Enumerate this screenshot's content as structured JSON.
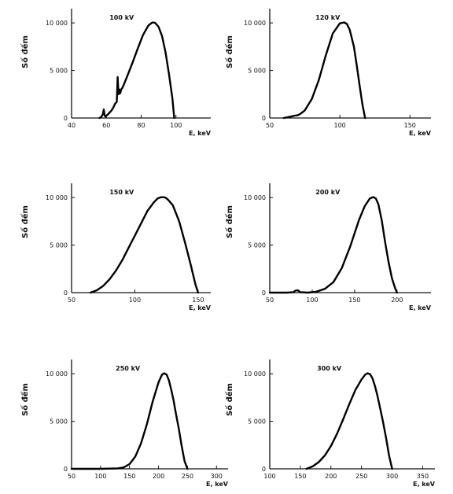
{
  "chart_data": [
    {
      "type": "line",
      "title": "100 kV",
      "ylabel": "Số đếm",
      "xlabel": "E, keV",
      "xlim": [
        40,
        120
      ],
      "ylim": [
        0,
        11500
      ],
      "xticks": [
        40,
        60,
        80,
        100
      ],
      "yticks": [
        0,
        5000,
        10000
      ],
      "ytick_labels": [
        "0",
        "5 000",
        "10 000"
      ],
      "series": [
        {
          "x": [
            56,
            57,
            58,
            58.5,
            59,
            59.5,
            60,
            61,
            62,
            63,
            64,
            65,
            66,
            66.5,
            67,
            67.5,
            68,
            68.5,
            69,
            70,
            72,
            75,
            78,
            81,
            84,
            86,
            87,
            88,
            90,
            92,
            94,
            96,
            98,
            99
          ],
          "y": [
            0,
            100,
            400,
            900,
            300,
            150,
            250,
            400,
            600,
            800,
            1100,
            1500,
            1700,
            4300,
            2500,
            3000,
            2600,
            3000,
            3100,
            3500,
            4400,
            5800,
            7300,
            8700,
            9700,
            10000,
            10050,
            10000,
            9600,
            8600,
            6900,
            4600,
            2000,
            0
          ]
        }
      ]
    },
    {
      "type": "line",
      "title": "120 kV",
      "ylabel": "Số đếm",
      "xlabel": "E, keV",
      "xlim": [
        50,
        165
      ],
      "ylim": [
        0,
        11500
      ],
      "xticks": [
        50,
        100,
        150
      ],
      "yticks": [
        0,
        5000,
        10000
      ],
      "ytick_labels": [
        "0",
        "5 000",
        "10 000"
      ],
      "series": [
        {
          "x": [
            60,
            65,
            68,
            70,
            72,
            75,
            80,
            85,
            90,
            95,
            100,
            103,
            105,
            107,
            110,
            112,
            114,
            116,
            118
          ],
          "y": [
            0,
            150,
            250,
            300,
            450,
            800,
            2000,
            4000,
            6600,
            8900,
            9950,
            10050,
            9900,
            9300,
            7500,
            5600,
            3500,
            1500,
            0
          ]
        }
      ]
    },
    {
      "type": "line",
      "title": "150 kV",
      "ylabel": "Số đếm",
      "xlabel": "E, keV",
      "xlim": [
        50,
        160
      ],
      "ylim": [
        0,
        11500
      ],
      "xticks": [
        50,
        100,
        150
      ],
      "yticks": [
        0,
        5000,
        10000
      ],
      "ytick_labels": [
        "0",
        "5 000",
        "10 000"
      ],
      "series": [
        {
          "x": [
            65,
            70,
            75,
            80,
            85,
            90,
            95,
            100,
            105,
            110,
            115,
            118,
            120,
            122,
            124,
            126,
            130,
            135,
            140,
            144,
            148,
            150
          ],
          "y": [
            0,
            250,
            700,
            1400,
            2300,
            3400,
            4700,
            6000,
            7300,
            8600,
            9500,
            9900,
            10000,
            10050,
            10000,
            9800,
            9200,
            7500,
            5100,
            3000,
            800,
            0
          ]
        }
      ]
    },
    {
      "type": "line",
      "title": "200 kV",
      "ylabel": "Số đếm",
      "xlabel": "E, keV",
      "xlim": [
        50,
        240
      ],
      "ylim": [
        0,
        11500
      ],
      "xticks": [
        50,
        100,
        150,
        200
      ],
      "yticks": [
        0,
        5000,
        10000
      ],
      "ytick_labels": [
        "0",
        "5 000",
        "10 000"
      ],
      "series": [
        {
          "x": [
            50,
            70,
            78,
            80,
            83,
            86,
            95,
            105,
            115,
            125,
            135,
            145,
            155,
            162,
            168,
            172,
            175,
            178,
            182,
            186,
            190,
            194,
            198,
            200
          ],
          "y": [
            0,
            0,
            50,
            200,
            250,
            50,
            0,
            100,
            400,
            1100,
            2600,
            4900,
            7600,
            9100,
            9900,
            10050,
            9900,
            9300,
            7600,
            5300,
            3200,
            1500,
            400,
            0
          ]
        }
      ]
    },
    {
      "type": "line",
      "title": "250 kV",
      "ylabel": "Số đếm",
      "xlabel": "E, keV",
      "xlim": [
        50,
        320
      ],
      "ylim": [
        0,
        11500
      ],
      "xticks": [
        50,
        100,
        150,
        200,
        250,
        300
      ],
      "yticks": [
        0,
        5000,
        10000
      ],
      "ytick_labels": [
        "0",
        "5 000",
        "10 000"
      ],
      "series": [
        {
          "x": [
            50,
            100,
            130,
            140,
            150,
            160,
            170,
            180,
            190,
            200,
            206,
            210,
            214,
            218,
            222,
            226,
            230,
            235,
            240,
            245,
            250
          ],
          "y": [
            0,
            0,
            50,
            150,
            500,
            1300,
            2700,
            4700,
            7100,
            9100,
            9900,
            10050,
            9900,
            9300,
            8300,
            7200,
            5800,
            4200,
            2400,
            800,
            0
          ]
        }
      ]
    },
    {
      "type": "line",
      "title": "300 kV",
      "ylabel": "Số đếm",
      "xlabel": "E, keV",
      "xlim": [
        100,
        370
      ],
      "ylim": [
        0,
        11500
      ],
      "xticks": [
        100,
        150,
        200,
        250,
        300,
        350
      ],
      "yticks": [
        0,
        5000,
        10000
      ],
      "ytick_labels": [
        "0",
        "5 000",
        "10 000"
      ],
      "series": [
        {
          "x": [
            160,
            170,
            180,
            190,
            200,
            210,
            220,
            230,
            240,
            250,
            256,
            260,
            264,
            268,
            272,
            276,
            280,
            285,
            290,
            295,
            300
          ],
          "y": [
            0,
            250,
            700,
            1400,
            2400,
            3700,
            5200,
            6800,
            8300,
            9400,
            9900,
            10050,
            9950,
            9500,
            8700,
            7700,
            6500,
            5000,
            3300,
            1400,
            0
          ]
        }
      ]
    }
  ]
}
